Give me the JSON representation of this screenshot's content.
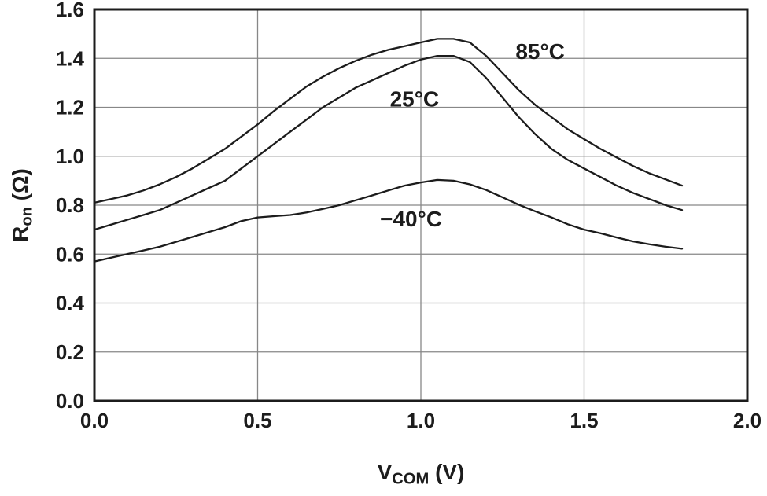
{
  "page": {
    "background": "#ffffff"
  },
  "labels": {
    "y_pre": "R",
    "y_sub": "on",
    "y_post": "(Ω)",
    "x_pre": "V",
    "x_sub": "COM",
    "x_post": "(V)"
  },
  "chart_data": {
    "type": "line",
    "title": "",
    "xlabel": "VCOM (V)",
    "ylabel": "Ron (Ω)",
    "xlim": [
      0,
      2.0
    ],
    "ylim": [
      0,
      1.6
    ],
    "xticks": [
      "0.0",
      "0.5",
      "1.0",
      "1.5",
      "2.0"
    ],
    "yticks": [
      "0.0",
      "0.2",
      "0.4",
      "0.6",
      "0.8",
      "1.0",
      "1.2",
      "1.4",
      "1.6"
    ],
    "grid": true,
    "legend_position": "inline-annotations",
    "colors": {
      "curve": "#1c1c1c",
      "grid": "#878787",
      "frame": "#1c1c1c",
      "text": "#1c1c1c"
    },
    "series": [
      {
        "name": "85°C",
        "points": [
          [
            0,
            0.81
          ],
          [
            0.05,
            0.825
          ],
          [
            0.1,
            0.84
          ],
          [
            0.15,
            0.86
          ],
          [
            0.2,
            0.885
          ],
          [
            0.25,
            0.915
          ],
          [
            0.3,
            0.95
          ],
          [
            0.35,
            0.99
          ],
          [
            0.4,
            1.03
          ],
          [
            0.45,
            1.08
          ],
          [
            0.5,
            1.13
          ],
          [
            0.55,
            1.185
          ],
          [
            0.6,
            1.235
          ],
          [
            0.65,
            1.285
          ],
          [
            0.7,
            1.325
          ],
          [
            0.75,
            1.36
          ],
          [
            0.8,
            1.39
          ],
          [
            0.85,
            1.415
          ],
          [
            0.9,
            1.435
          ],
          [
            0.95,
            1.45
          ],
          [
            1,
            1.465
          ],
          [
            1.05,
            1.48
          ],
          [
            1.1,
            1.48
          ],
          [
            1.15,
            1.465
          ],
          [
            1.2,
            1.41
          ],
          [
            1.25,
            1.34
          ],
          [
            1.3,
            1.27
          ],
          [
            1.35,
            1.21
          ],
          [
            1.4,
            1.16
          ],
          [
            1.45,
            1.11
          ],
          [
            1.5,
            1.07
          ],
          [
            1.55,
            1.03
          ],
          [
            1.6,
            0.995
          ],
          [
            1.65,
            0.96
          ],
          [
            1.7,
            0.93
          ],
          [
            1.75,
            0.905
          ],
          [
            1.8,
            0.88
          ]
        ]
      },
      {
        "name": "25°C",
        "points": [
          [
            0,
            0.7
          ],
          [
            0.05,
            0.72
          ],
          [
            0.1,
            0.74
          ],
          [
            0.15,
            0.76
          ],
          [
            0.2,
            0.78
          ],
          [
            0.25,
            0.81
          ],
          [
            0.3,
            0.84
          ],
          [
            0.35,
            0.87
          ],
          [
            0.4,
            0.9
          ],
          [
            0.45,
            0.95
          ],
          [
            0.5,
            1.0
          ],
          [
            0.55,
            1.05
          ],
          [
            0.6,
            1.1
          ],
          [
            0.65,
            1.15
          ],
          [
            0.7,
            1.2
          ],
          [
            0.75,
            1.24
          ],
          [
            0.8,
            1.28
          ],
          [
            0.85,
            1.31
          ],
          [
            0.9,
            1.34
          ],
          [
            0.95,
            1.37
          ],
          [
            1,
            1.395
          ],
          [
            1.05,
            1.41
          ],
          [
            1.1,
            1.41
          ],
          [
            1.15,
            1.385
          ],
          [
            1.2,
            1.32
          ],
          [
            1.25,
            1.24
          ],
          [
            1.3,
            1.16
          ],
          [
            1.35,
            1.09
          ],
          [
            1.4,
            1.03
          ],
          [
            1.45,
            0.985
          ],
          [
            1.5,
            0.95
          ],
          [
            1.55,
            0.915
          ],
          [
            1.6,
            0.88
          ],
          [
            1.65,
            0.85
          ],
          [
            1.7,
            0.825
          ],
          [
            1.75,
            0.8
          ],
          [
            1.8,
            0.78
          ]
        ]
      },
      {
        "name": "−40°C",
        "points": [
          [
            0,
            0.57
          ],
          [
            0.05,
            0.585
          ],
          [
            0.1,
            0.6
          ],
          [
            0.15,
            0.615
          ],
          [
            0.2,
            0.63
          ],
          [
            0.25,
            0.65
          ],
          [
            0.3,
            0.67
          ],
          [
            0.35,
            0.69
          ],
          [
            0.4,
            0.71
          ],
          [
            0.45,
            0.735
          ],
          [
            0.5,
            0.75
          ],
          [
            0.55,
            0.755
          ],
          [
            0.6,
            0.76
          ],
          [
            0.65,
            0.77
          ],
          [
            0.7,
            0.785
          ],
          [
            0.75,
            0.8
          ],
          [
            0.8,
            0.82
          ],
          [
            0.85,
            0.84
          ],
          [
            0.9,
            0.86
          ],
          [
            0.95,
            0.88
          ],
          [
            1,
            0.893
          ],
          [
            1.05,
            0.903
          ],
          [
            1.1,
            0.9
          ],
          [
            1.15,
            0.885
          ],
          [
            1.2,
            0.862
          ],
          [
            1.25,
            0.832
          ],
          [
            1.3,
            0.802
          ],
          [
            1.35,
            0.775
          ],
          [
            1.4,
            0.75
          ],
          [
            1.45,
            0.722
          ],
          [
            1.5,
            0.7
          ],
          [
            1.55,
            0.685
          ],
          [
            1.6,
            0.668
          ],
          [
            1.65,
            0.652
          ],
          [
            1.7,
            0.64
          ],
          [
            1.75,
            0.63
          ],
          [
            1.8,
            0.622
          ]
        ]
      }
    ],
    "annotations": [
      {
        "text": "85°C",
        "x": 1.29,
        "y": 1.43
      },
      {
        "text": "25°C",
        "x": 0.905,
        "y": 1.235
      },
      {
        "text": "−40°C",
        "x": 0.875,
        "y": 0.745
      }
    ]
  }
}
